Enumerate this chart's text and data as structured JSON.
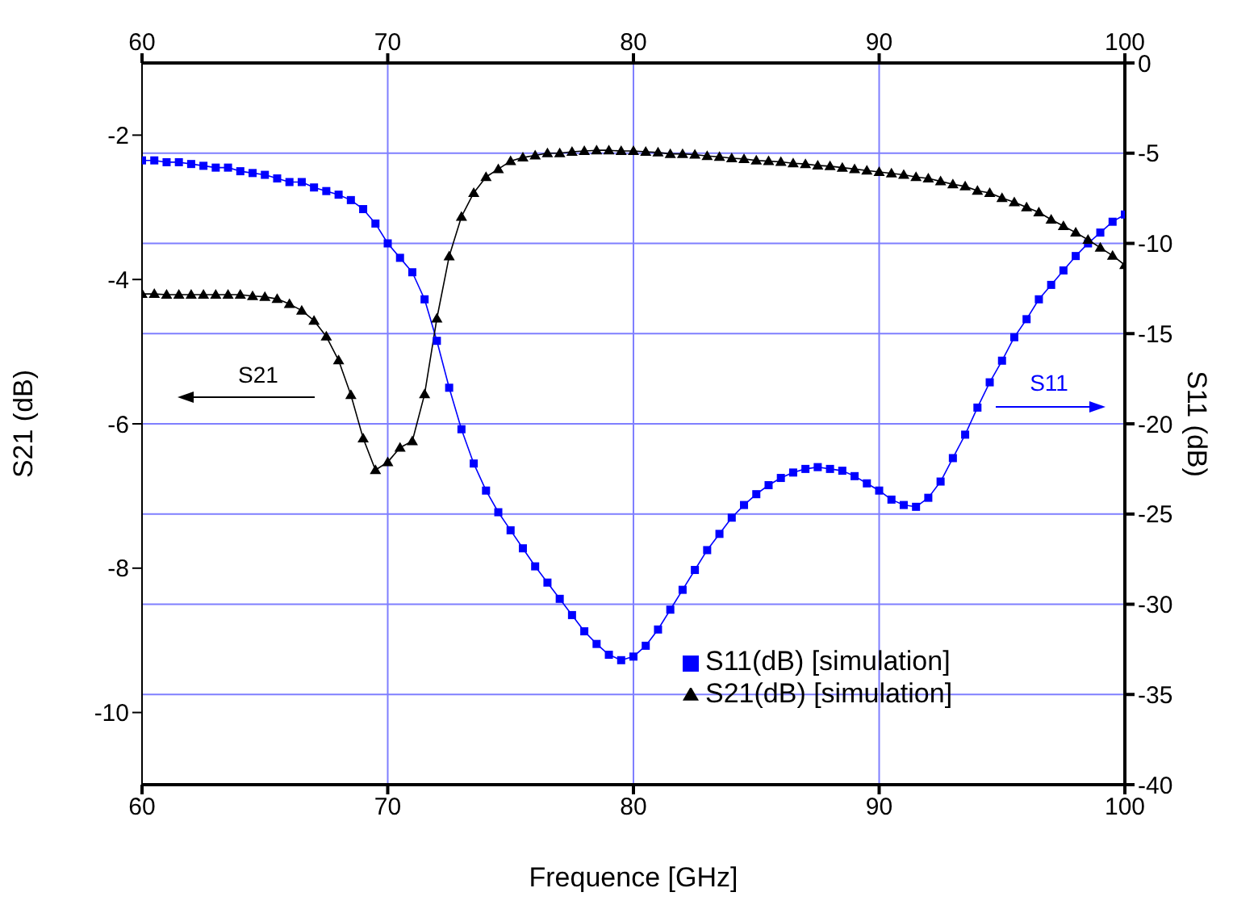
{
  "chart_data": {
    "type": "line",
    "xlabel": "Frequence [GHz]",
    "ylabel": "S21 (dB)",
    "y2label": "S11 (dB)",
    "x": [
      60,
      60.5,
      61,
      61.5,
      62,
      62.5,
      63,
      63.5,
      64,
      64.5,
      65,
      65.5,
      66,
      66.5,
      67,
      67.5,
      68,
      68.5,
      69,
      69.5,
      70,
      70.5,
      71,
      71.5,
      72,
      72.5,
      73,
      73.5,
      74,
      74.5,
      75,
      75.5,
      76,
      76.5,
      77,
      77.5,
      78,
      78.5,
      79,
      79.5,
      80,
      80.5,
      81,
      81.5,
      82,
      82.5,
      83,
      83.5,
      84,
      84.5,
      85,
      85.5,
      86,
      86.5,
      87,
      87.5,
      88,
      88.5,
      89,
      89.5,
      90,
      90.5,
      91,
      91.5,
      92,
      92.5,
      93,
      93.5,
      94,
      94.5,
      95,
      95.5,
      96,
      96.5,
      97,
      97.5,
      98,
      98.5,
      99,
      99.5,
      100
    ],
    "series": [
      {
        "name": "S11(dB) [simulation]",
        "color": "#0000ff",
        "axis": "y2",
        "marker": "square",
        "values": [
          -5.4,
          -5.4,
          -5.5,
          -5.5,
          -5.6,
          -5.7,
          -5.8,
          -5.8,
          -6.0,
          -6.1,
          -6.2,
          -6.4,
          -6.6,
          -6.6,
          -6.9,
          -7.1,
          -7.3,
          -7.6,
          -8.1,
          -8.9,
          -10.0,
          -10.8,
          -11.6,
          -13.1,
          -15.4,
          -18.0,
          -20.3,
          -22.2,
          -23.7,
          -24.9,
          -25.9,
          -26.9,
          -27.9,
          -28.8,
          -29.7,
          -30.6,
          -31.5,
          -32.2,
          -32.8,
          -33.1,
          -32.9,
          -32.3,
          -31.4,
          -30.3,
          -29.2,
          -28.1,
          -27.0,
          -26.1,
          -25.2,
          -24.5,
          -23.9,
          -23.4,
          -23.0,
          -22.7,
          -22.5,
          -22.4,
          -22.5,
          -22.6,
          -22.9,
          -23.3,
          -23.7,
          -24.2,
          -24.5,
          -24.6,
          -24.1,
          -23.2,
          -21.9,
          -20.6,
          -19.1,
          -17.7,
          -16.5,
          -15.2,
          -14.2,
          -13.1,
          -12.3,
          -11.5,
          -10.7,
          -10.0,
          -9.4,
          -8.8,
          -8.4
        ]
      },
      {
        "name": "S21(dB) [simulation]",
        "color": "#000000",
        "axis": "y",
        "marker": "triangle",
        "values": [
          -4.2,
          -4.2,
          -4.21,
          -4.21,
          -4.21,
          -4.21,
          -4.21,
          -4.21,
          -4.21,
          -4.23,
          -4.24,
          -4.27,
          -4.34,
          -4.43,
          -4.57,
          -4.79,
          -5.12,
          -5.6,
          -6.2,
          -6.64,
          -6.53,
          -6.33,
          -6.24,
          -5.59,
          -4.54,
          -3.68,
          -3.13,
          -2.8,
          -2.58,
          -2.47,
          -2.36,
          -2.31,
          -2.28,
          -2.25,
          -2.25,
          -2.23,
          -2.22,
          -2.21,
          -2.21,
          -2.22,
          -2.22,
          -2.23,
          -2.24,
          -2.26,
          -2.26,
          -2.27,
          -2.29,
          -2.3,
          -2.32,
          -2.33,
          -2.35,
          -2.36,
          -2.37,
          -2.39,
          -2.4,
          -2.42,
          -2.43,
          -2.45,
          -2.47,
          -2.49,
          -2.51,
          -2.53,
          -2.55,
          -2.58,
          -2.6,
          -2.64,
          -2.68,
          -2.71,
          -2.77,
          -2.8,
          -2.87,
          -2.93,
          -3.0,
          -3.07,
          -3.17,
          -3.26,
          -3.35,
          -3.45,
          -3.56,
          -3.67,
          -3.8
        ]
      }
    ],
    "xlim": [
      60,
      100
    ],
    "xticks": [
      60,
      70,
      80,
      90,
      100
    ],
    "x2lim": [
      60,
      100
    ],
    "x2ticks": [
      60,
      70,
      80,
      90,
      100
    ],
    "ylim": [
      -11,
      -1
    ],
    "yticks": [
      -10,
      -8,
      -6,
      -4,
      -2
    ],
    "y2lim": [
      -40,
      0
    ],
    "y2ticks": [
      -40,
      -35,
      -30,
      -25,
      -20,
      -15,
      -10,
      -5,
      0
    ],
    "grid": true,
    "legend": "bottom right",
    "line_style": "solid",
    "annotations": [
      "S21",
      "S11"
    ]
  }
}
